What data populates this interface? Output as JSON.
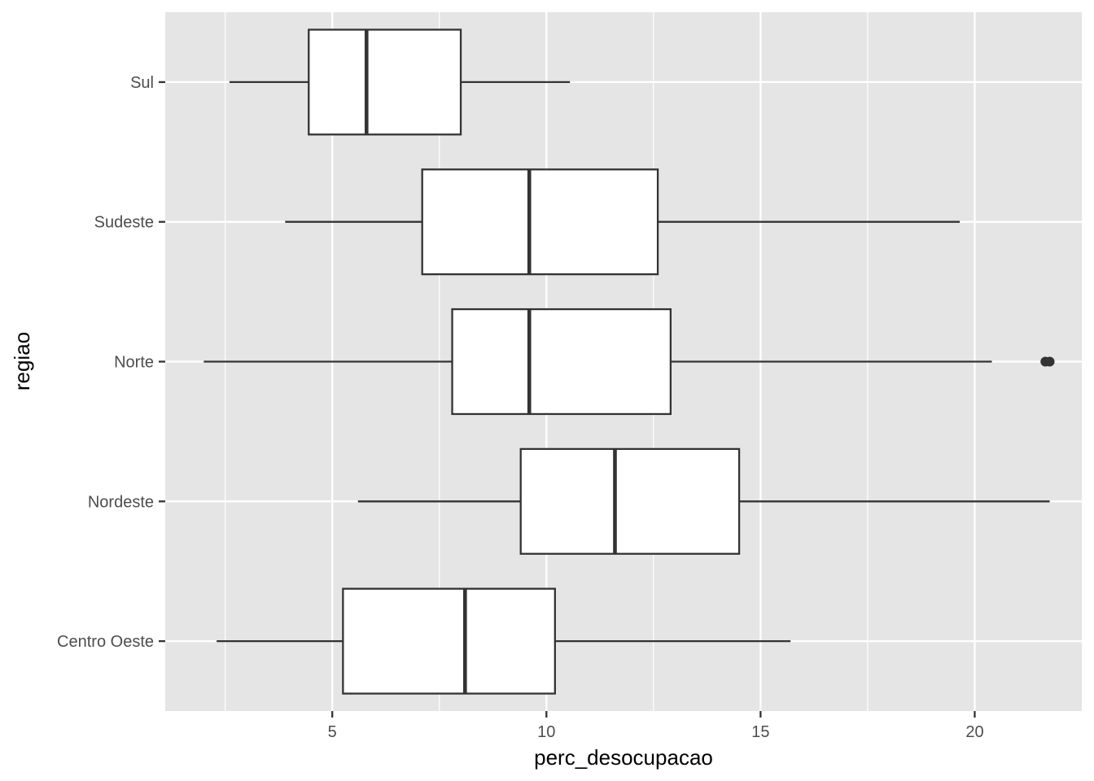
{
  "chart_data": {
    "type": "boxplot",
    "orientation": "horizontal",
    "xlabel": "perc_desocupacao",
    "ylabel": "regiao",
    "xlim": [
      1.1,
      22.5
    ],
    "xticks": [
      5,
      10,
      15,
      20
    ],
    "grid": true,
    "legend": "none",
    "categories": [
      "Sul",
      "Sudeste",
      "Norte",
      "Nordeste",
      "Centro Oeste"
    ],
    "boxes": [
      {
        "label": "Sul",
        "whisker_low": 2.6,
        "q1": 4.45,
        "median": 5.8,
        "q3": 8.0,
        "whisker_high": 10.55,
        "outliers": []
      },
      {
        "label": "Sudeste",
        "whisker_low": 3.9,
        "q1": 7.1,
        "median": 9.6,
        "q3": 12.6,
        "whisker_high": 19.65,
        "outliers": []
      },
      {
        "label": "Norte",
        "whisker_low": 2.0,
        "q1": 7.8,
        "median": 9.6,
        "q3": 12.9,
        "whisker_high": 20.4,
        "outliers": [
          21.65,
          21.75
        ]
      },
      {
        "label": "Nordeste",
        "whisker_low": 5.6,
        "q1": 9.4,
        "median": 11.6,
        "q3": 14.5,
        "whisker_high": 21.75,
        "outliers": []
      },
      {
        "label": "Centro Oeste",
        "whisker_low": 2.3,
        "q1": 5.25,
        "median": 8.1,
        "q3": 10.2,
        "whisker_high": 15.7,
        "outliers": []
      }
    ],
    "colors": {
      "panel": "#e5e5e5",
      "grid": "#ffffff",
      "box_fill": "#ffffff",
      "box_stroke": "#333333",
      "tick": "#333333",
      "tick_label": "#4d4d4d"
    }
  }
}
